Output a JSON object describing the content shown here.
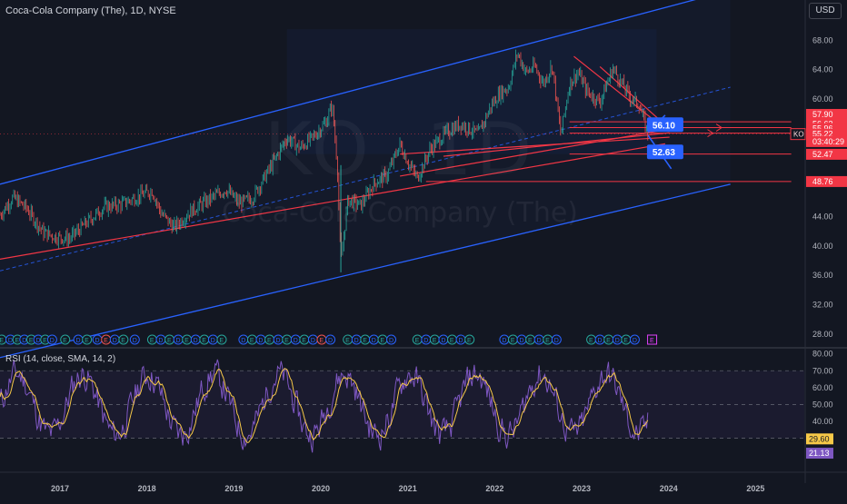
{
  "header": {
    "symbol_title": "Coca-Cola Company (The), 1D, NYSE",
    "currency_button": "USD"
  },
  "watermark": {
    "ticker": "KO, 1D",
    "name": "Coca-Cola Company (The)"
  },
  "colors": {
    "background": "#131722",
    "price_line": "#26a69a",
    "down_candle": "#ef5350",
    "channel": "#2962ff",
    "trendline": "#f23645",
    "rsi_line": "#7e57c2",
    "rsi_sma": "#f7c948",
    "rsi_band": "#1e1d33",
    "label_blue": "#2962ff",
    "label_red": "#f23645"
  },
  "chart_data": [
    {
      "type": "line",
      "name": "price",
      "ylim": [
        26.5,
        71
      ],
      "xlim": [
        2016.3,
        2025.55
      ],
      "y_ticks": [
        28,
        32,
        36,
        40,
        44,
        48,
        52,
        56,
        60,
        64,
        68
      ],
      "y_tick_labels": [
        "28.00",
        "32.00",
        "36.00",
        "40.00",
        "44.00",
        "",
        "",
        "",
        "60.00",
        "64.00",
        "68.00"
      ],
      "x_ticks": [
        2017,
        2018,
        2019,
        2020,
        2021,
        2022,
        2023,
        2024,
        2025
      ],
      "x_tick_labels": [
        "2017",
        "2018",
        "2019",
        "2020",
        "2021",
        "2022",
        "2023",
        "2024",
        "2025"
      ],
      "series": [
        {
          "points": [
            [
              2016.3,
              44.2
            ],
            [
              2016.45,
              46.6
            ],
            [
              2016.6,
              45.2
            ],
            [
              2016.8,
              41.8
            ],
            [
              2016.95,
              41.2
            ],
            [
              2017.1,
              41.0
            ],
            [
              2017.3,
              43.2
            ],
            [
              2017.5,
              45.3
            ],
            [
              2017.7,
              45.7
            ],
            [
              2017.9,
              46.8
            ],
            [
              2018.05,
              47.5
            ],
            [
              2018.15,
              44.5
            ],
            [
              2018.3,
              42.5
            ],
            [
              2018.5,
              44.8
            ],
            [
              2018.7,
              46.3
            ],
            [
              2018.9,
              47.7
            ],
            [
              2019.05,
              45.8
            ],
            [
              2019.2,
              46.5
            ],
            [
              2019.4,
              50.5
            ],
            [
              2019.6,
              54.7
            ],
            [
              2019.75,
              53.3
            ],
            [
              2019.9,
              54.8
            ],
            [
              2020.05,
              56.9
            ],
            [
              2020.12,
              59.2
            ],
            [
              2020.18,
              51.0
            ],
            [
              2020.22,
              37.6
            ],
            [
              2020.3,
              46.3
            ],
            [
              2020.45,
              45.5
            ],
            [
              2020.6,
              48.5
            ],
            [
              2020.75,
              49.6
            ],
            [
              2020.9,
              53.8
            ],
            [
              2021.0,
              51.2
            ],
            [
              2021.1,
              49.2
            ],
            [
              2021.25,
              53.2
            ],
            [
              2021.45,
              55.6
            ],
            [
              2021.6,
              56.6
            ],
            [
              2021.8,
              55.2
            ],
            [
              2021.95,
              59.1
            ],
            [
              2022.05,
              60.8
            ],
            [
              2022.15,
              61.6
            ],
            [
              2022.25,
              66.3
            ],
            [
              2022.35,
              63.6
            ],
            [
              2022.45,
              64.4
            ],
            [
              2022.55,
              62.1
            ],
            [
              2022.65,
              64.6
            ],
            [
              2022.75,
              55.1
            ],
            [
              2022.85,
              62.1
            ],
            [
              2022.95,
              63.6
            ],
            [
              2023.05,
              61.0
            ],
            [
              2023.2,
              59.6
            ],
            [
              2023.35,
              64.2
            ],
            [
              2023.45,
              62.1
            ],
            [
              2023.55,
              60.2
            ],
            [
              2023.65,
              59.2
            ],
            [
              2023.75,
              55.2
            ]
          ]
        }
      ],
      "price_labels": [
        {
          "text": "57.90",
          "value": 57.9,
          "style": "red"
        },
        {
          "text": "56.63",
          "value": 56.63,
          "style": "red"
        },
        {
          "text": "55.96",
          "value": 55.96,
          "style": "red"
        },
        {
          "text": "55.22",
          "value": 55.22,
          "style": "red"
        },
        {
          "text": "03:40:29",
          "value": 54.2,
          "style": "red"
        },
        {
          "text": "52.47",
          "value": 52.47,
          "style": "red"
        },
        {
          "text": "48.76",
          "value": 48.76,
          "style": "red"
        },
        {
          "text": "KO",
          "value": 55.22,
          "style": "red-outline"
        }
      ],
      "annotations": [
        {
          "text": "56.10",
          "x": 2023.95,
          "y": 56.5
        },
        {
          "text": "52.63",
          "x": 2023.95,
          "y": 52.8
        }
      ],
      "horizontal_lines": [
        56.9,
        56.1,
        55.35,
        52.5,
        48.76
      ],
      "grid": false,
      "event_markers": "E D E D E D (earnings/dividends) along bottom"
    },
    {
      "type": "line",
      "name": "RSI (14, close, SMA, 14, 2)",
      "ylim": [
        12,
        82
      ],
      "y_ticks": [
        20,
        30,
        40,
        50,
        60,
        70,
        80
      ],
      "y_tick_labels": [
        "",
        "",
        "40.00",
        "50.00",
        "60.00",
        "70.00",
        "80.00"
      ],
      "band": [
        30,
        70
      ],
      "value_labels": [
        {
          "text": "29.60",
          "value": 29.6,
          "style": "yellow"
        },
        {
          "text": "21.13",
          "value": 21.13,
          "style": "purple"
        }
      ],
      "grid": false
    }
  ],
  "labels": {
    "rsi_title": "RSI (14, close, SMA, 14, 2)"
  }
}
